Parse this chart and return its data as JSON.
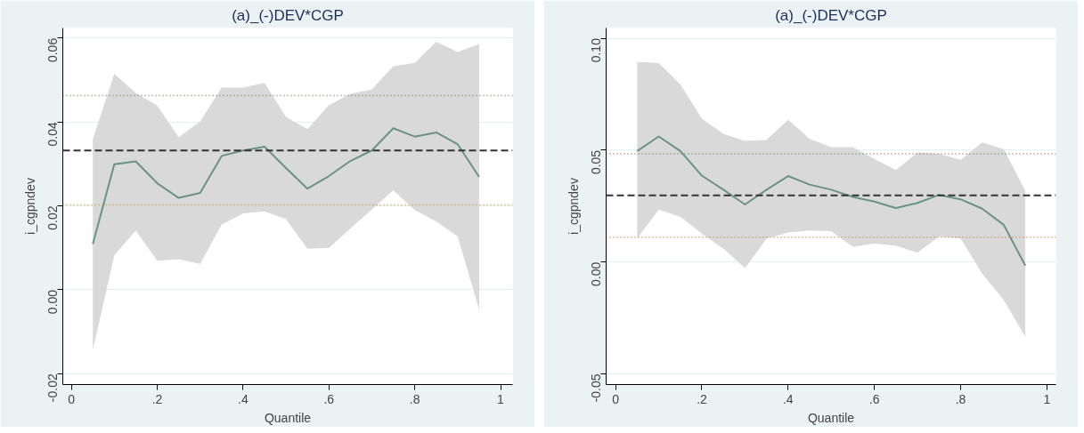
{
  "chart_data": [
    {
      "type": "line",
      "title": "(a)_(-)DEV*CGP",
      "xlabel": "Quantile",
      "ylabel": "i_cgpndev",
      "x": [
        0.05,
        0.1,
        0.15,
        0.2,
        0.25,
        0.3,
        0.35,
        0.4,
        0.45,
        0.5,
        0.55,
        0.6,
        0.65,
        0.7,
        0.75,
        0.8,
        0.85,
        0.9,
        0.95
      ],
      "series": [
        {
          "color": "#6a9385",
          "values": [
            0.0109,
            0.0299,
            0.0306,
            0.0254,
            0.0219,
            0.0231,
            0.0319,
            0.0332,
            0.0341,
            0.029,
            0.0241,
            0.0271,
            0.0307,
            0.0332,
            0.0385,
            0.0365,
            0.0375,
            0.0347,
            0.0269
          ],
          "lower": [
            -0.0144,
            0.0082,
            0.0141,
            0.0069,
            0.0073,
            0.0062,
            0.0155,
            0.0182,
            0.0187,
            0.0168,
            0.0098,
            0.01,
            0.0146,
            0.0191,
            0.0237,
            0.019,
            0.0163,
            0.0127,
            -0.0047
          ],
          "upper": [
            0.0359,
            0.0515,
            0.0469,
            0.0439,
            0.0364,
            0.0401,
            0.0482,
            0.0482,
            0.0493,
            0.0412,
            0.0383,
            0.044,
            0.0467,
            0.0478,
            0.0533,
            0.0541,
            0.0591,
            0.0567,
            0.0586
          ]
        }
      ],
      "ref_lines": [
        {
          "axis": "y",
          "value": 0.0332,
          "color": "#333333",
          "line_style": "dashed"
        },
        {
          "axis": "y",
          "value": 0.0463,
          "color": "#7a8a5a",
          "line_style": "dotted"
        },
        {
          "axis": "y",
          "value": 0.0202,
          "color": "#c8903a",
          "line_style": "dotted"
        }
      ],
      "xlim": [
        -0.02,
        1.028
      ],
      "ylim": [
        -0.0226,
        0.0624
      ],
      "xticks": [
        0,
        {
          "value": 0.2,
          "label": ".2"
        },
        {
          "value": 0.4,
          "label": ".4"
        },
        {
          "value": 0.6,
          "label": ".6"
        },
        {
          "value": 0.8,
          "label": ".8"
        },
        1
      ],
      "yticks": [
        {
          "value": -0.02,
          "label": "-0.02"
        },
        {
          "value": 0,
          "label": "0.00"
        },
        {
          "value": 0.02,
          "label": "0.02"
        },
        {
          "value": 0.04,
          "label": "0.04"
        },
        {
          "value": 0.06,
          "label": "0.06"
        }
      ],
      "grid": "y",
      "marker": "none",
      "line_style": "solid"
    },
    {
      "type": "line",
      "title": "(a)_(-)DEV*CGP",
      "xlabel": "Quantile",
      "ylabel": "i_cgpndev",
      "x": [
        0.05,
        0.1,
        0.15,
        0.2,
        0.25,
        0.3,
        0.35,
        0.4,
        0.45,
        0.5,
        0.55,
        0.6,
        0.65,
        0.7,
        0.75,
        0.8,
        0.85,
        0.9,
        0.95
      ],
      "series": [
        {
          "color": "#6a9385",
          "values": [
            0.0496,
            0.0561,
            0.0496,
            0.0386,
            0.0323,
            0.0257,
            0.0323,
            0.0384,
            0.0346,
            0.0323,
            0.0291,
            0.027,
            0.0241,
            0.0264,
            0.03,
            0.028,
            0.0238,
            0.0166,
            -0.0016
          ],
          "lower": [
            0.0105,
            0.0234,
            0.0202,
            0.0127,
            0.0059,
            -0.0027,
            0.0105,
            0.0132,
            0.0141,
            0.0138,
            0.0068,
            0.0082,
            0.0073,
            0.0041,
            0.0114,
            0.0105,
            -0.0052,
            -0.017,
            -0.0334
          ],
          "upper": [
            0.0895,
            0.0889,
            0.0795,
            0.0641,
            0.0573,
            0.0541,
            0.0546,
            0.0636,
            0.055,
            0.0513,
            0.0513,
            0.0461,
            0.0411,
            0.0489,
            0.0484,
            0.0457,
            0.0534,
            0.0504,
            0.0318
          ]
        }
      ],
      "ref_lines": [
        {
          "axis": "y",
          "value": 0.0298,
          "color": "#333333",
          "line_style": "dashed"
        },
        {
          "axis": "y",
          "value": 0.0484,
          "color": "#7a8a5a",
          "line_style": "dotted"
        },
        {
          "axis": "y",
          "value": 0.0111,
          "color": "#c8903a",
          "line_style": "dotted"
        }
      ],
      "xlim": [
        -0.022,
        1.021
      ],
      "ylim": [
        -0.0548,
        0.1046
      ],
      "xticks": [
        0,
        {
          "value": 0.2,
          "label": ".2"
        },
        {
          "value": 0.4,
          "label": ".4"
        },
        {
          "value": 0.6,
          "label": ".6"
        },
        {
          "value": 0.8,
          "label": ".8"
        },
        1
      ],
      "yticks": [
        {
          "value": -0.05,
          "label": "-0.05"
        },
        {
          "value": 0,
          "label": "0.00"
        },
        {
          "value": 0.05,
          "label": "0.05"
        },
        {
          "value": 0.1,
          "label": "0.10"
        }
      ],
      "grid": "y",
      "marker": "none",
      "line_style": "solid"
    }
  ]
}
